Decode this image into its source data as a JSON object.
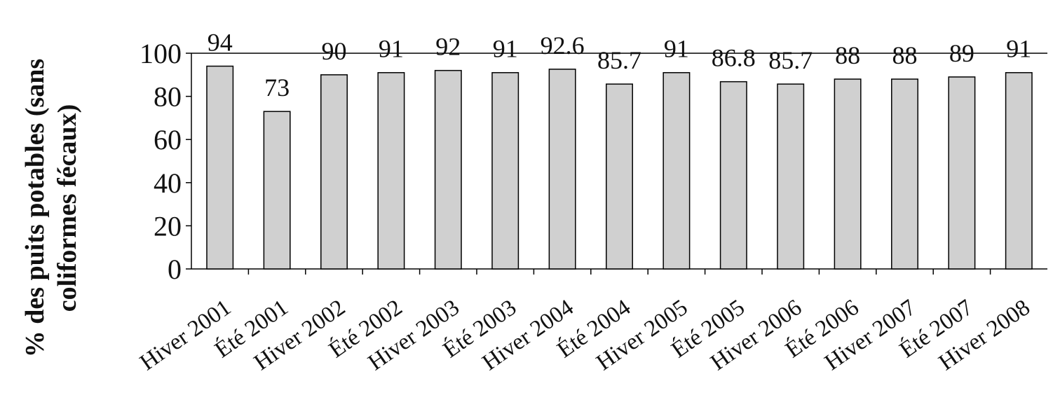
{
  "chart_data": {
    "type": "bar",
    "title": "",
    "xlabel": "",
    "ylabel_lines": [
      "% des puits potables (sans",
      "coliformes fécaux)"
    ],
    "categories": [
      "Hiver 2001",
      "Été 2001",
      "Hiver 2002",
      "Été 2002",
      "Hiver 2003",
      "Été 2003",
      "Hiver 2004",
      "Été 2004",
      "Hiver 2005",
      "Été 2005",
      "Hiver 2006",
      "Été 2006",
      "Hiver 2007",
      "Été 2007",
      "Hiver 2008"
    ],
    "values": [
      94,
      73,
      90,
      91,
      92,
      91,
      92.6,
      85.7,
      91,
      86.8,
      85.7,
      88,
      88,
      89,
      91
    ],
    "data_labels": [
      "94",
      "73",
      "90",
      "91",
      "92",
      "91",
      "92.6",
      "85.7",
      "91",
      "86.8",
      "85.7",
      "88",
      "88",
      "89",
      "91"
    ],
    "ylim": [
      0,
      100
    ],
    "yticks": [
      0,
      20,
      40,
      60,
      80,
      100
    ],
    "ytick_labels": [
      "0",
      "20",
      "40",
      "60",
      "80",
      "100"
    ],
    "grid": false,
    "legend": "none",
    "bar_color": "#d0d0d0",
    "bar_edge_color": "#000000"
  }
}
